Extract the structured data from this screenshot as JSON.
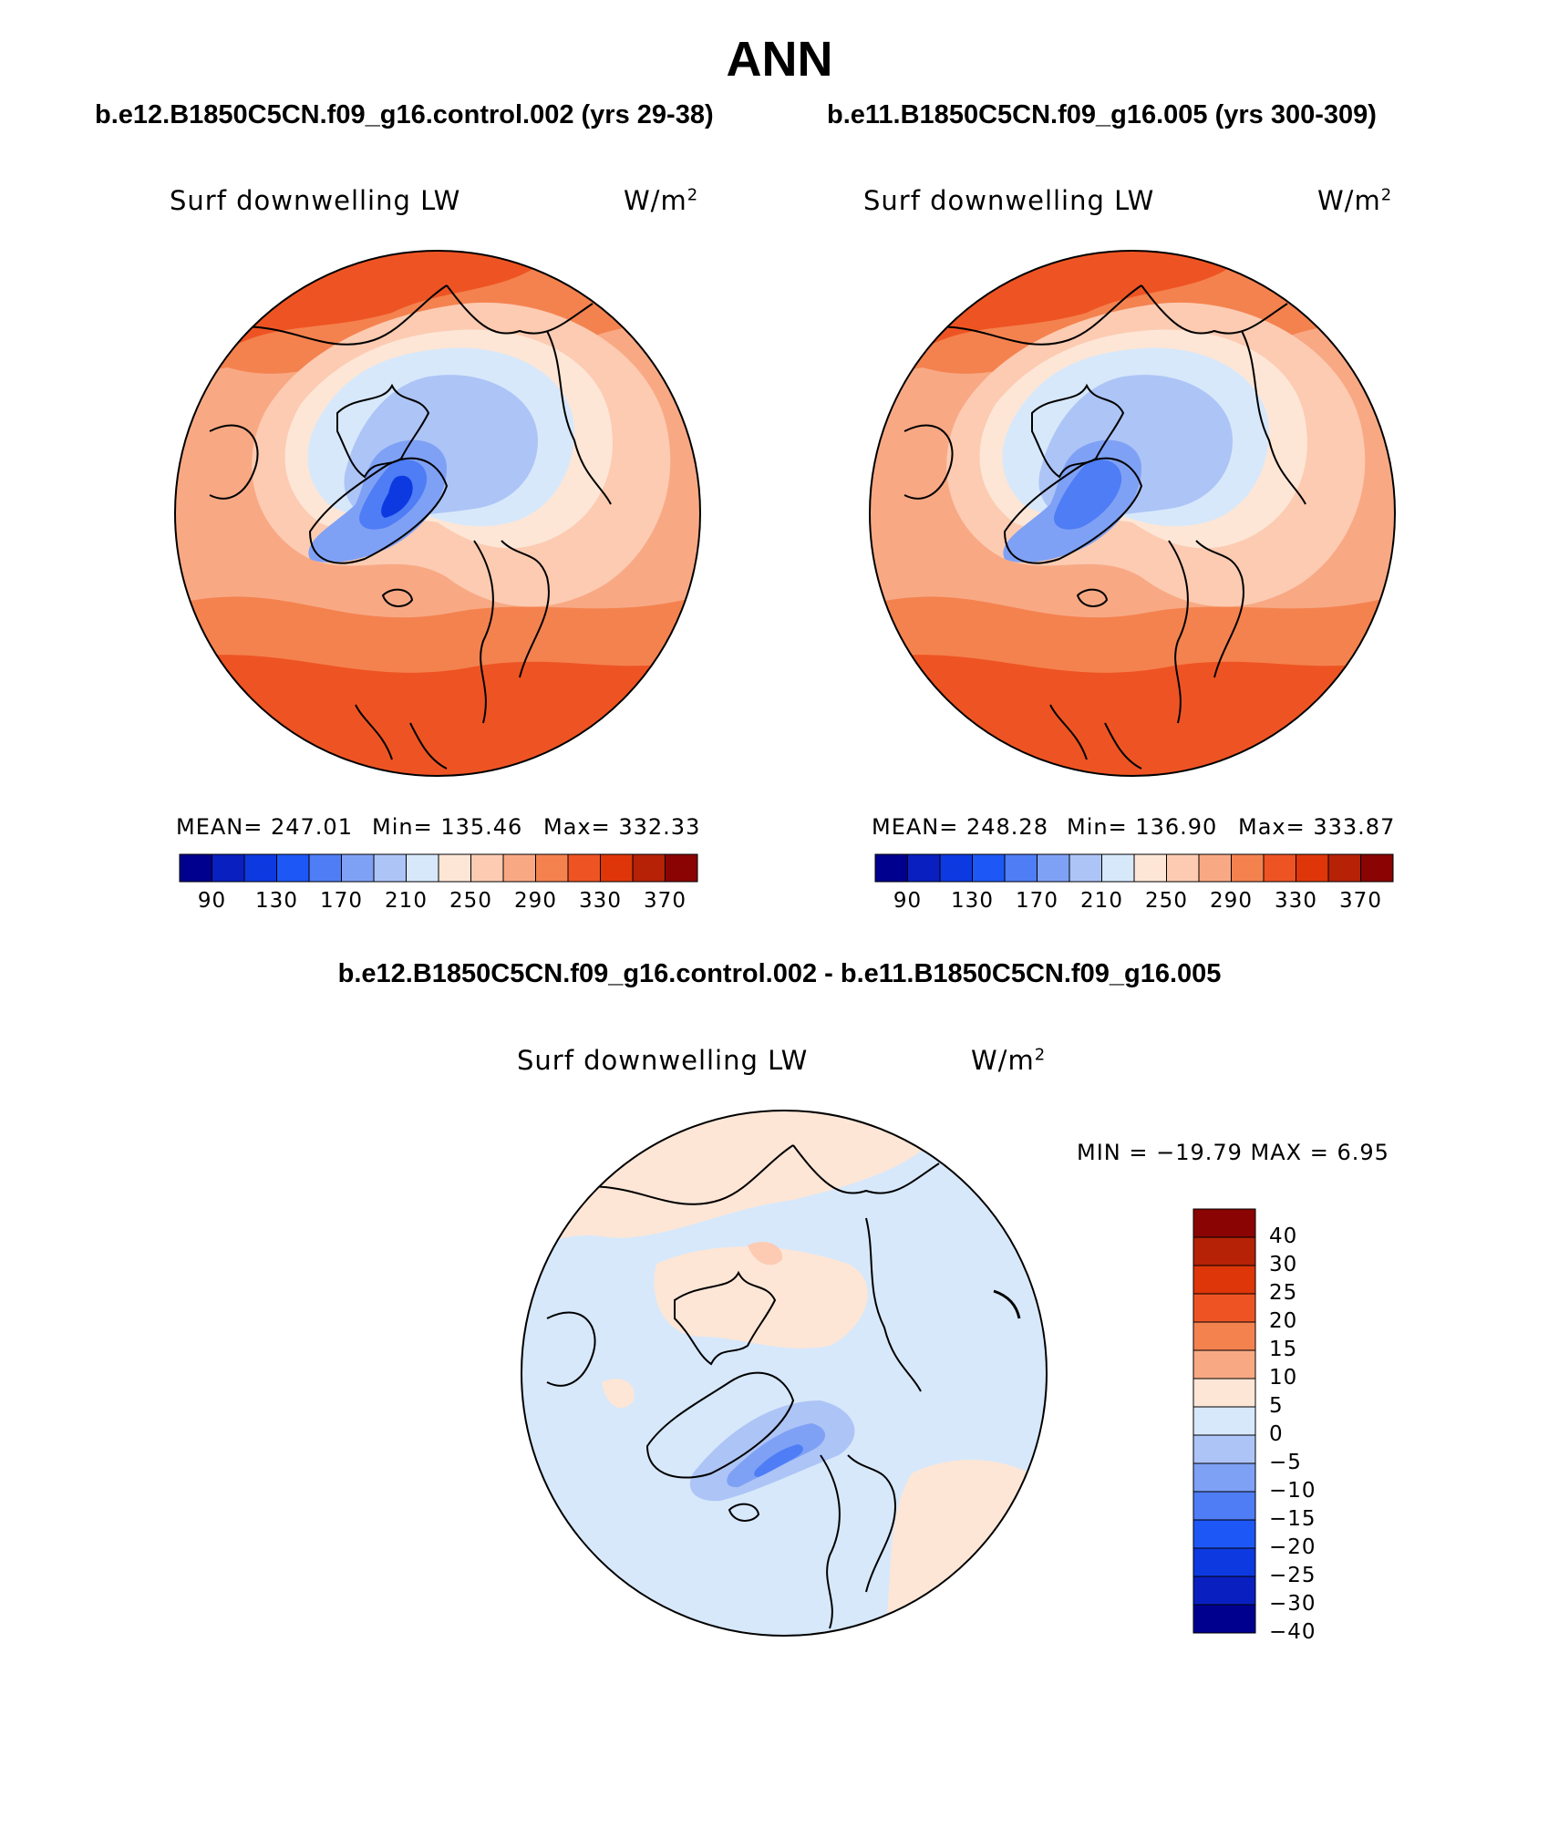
{
  "page_title": "ANN",
  "panels": [
    {
      "case_title": "b.e12.B1850C5CN.f09_g16.control.002 (yrs 29-38)",
      "variable": "Surf downwelling LW",
      "units": "W/m",
      "units_sup": "2",
      "mean_label": "MEAN= 247.01",
      "min_label": "Min= 135.46",
      "max_label": "Max= 332.33"
    },
    {
      "case_title": "b.e11.B1850C5CN.f09_g16.005 (yrs 300-309)",
      "variable": "Surf downwelling LW",
      "units": "W/m",
      "units_sup": "2",
      "mean_label": "MEAN= 248.28",
      "min_label": "Min= 136.90",
      "max_label": "Max= 333.87"
    }
  ],
  "abs_colorbar": {
    "colors": [
      "#00008f",
      "#0a1fbf",
      "#0d3ae0",
      "#1d57f5",
      "#4e7df6",
      "#7fa1f5",
      "#adc4f6",
      "#d7e8fb",
      "#fde6d6",
      "#fccbb2",
      "#f8a984",
      "#f4824f",
      "#ee5423",
      "#de3609",
      "#b52206",
      "#8a0404"
    ],
    "tick_labels": [
      "90",
      "130",
      "170",
      "210",
      "250",
      "290",
      "330",
      "370"
    ]
  },
  "diff_panel": {
    "title": "b.e12.B1850C5CN.f09_g16.control.002 - b.e11.B1850C5CN.f09_g16.005",
    "variable": "Surf downwelling LW",
    "units": "W/m",
    "units_sup": "2",
    "minmax_label": "MIN = −19.79 MAX =    6.95"
  },
  "diff_colorbar": {
    "colors": [
      "#8a0404",
      "#b52206",
      "#de3609",
      "#ee5423",
      "#f4824f",
      "#f8a984",
      "#fde6d6",
      "#d7e8fb",
      "#adc4f6",
      "#7fa1f5",
      "#4e7df6",
      "#1d57f5",
      "#0d3ae0",
      "#0a1fbf",
      "#00008f"
    ],
    "tick_labels": [
      "40",
      "30",
      "25",
      "20",
      "15",
      "10",
      "5",
      "0",
      "−5",
      "−10",
      "−15",
      "−20",
      "−25",
      "−30",
      "−40"
    ]
  },
  "map_colors": {
    "warm_dark": "#ee5423",
    "warm_mid": "#f4824f",
    "warm_light": "#f8a984",
    "warm_pale": "#fccbb2",
    "peach": "#fde6d6",
    "blue_pale": "#d7e8fb",
    "blue_light": "#adc4f6",
    "blue_mid": "#7fa1f5",
    "blue_deep": "#4e7df6",
    "blue_dark": "#0d3ae0"
  }
}
